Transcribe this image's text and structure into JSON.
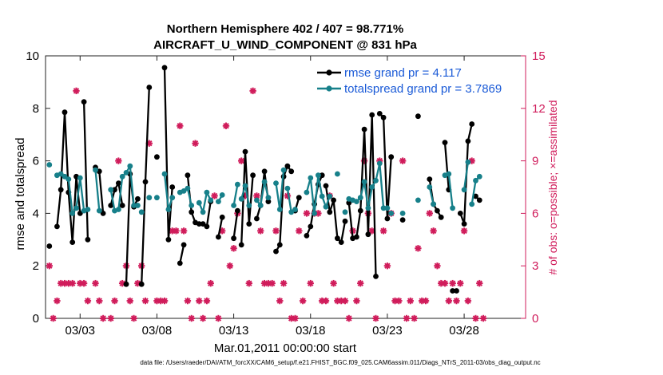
{
  "chart_data": {
    "type": "line",
    "title_line1": "Northern Hemisphere 402 / 407 = 98.771%",
    "title_line2": "AIRCRAFT_U_WIND_COMPONENT @ 831 hPa",
    "xlabel": "Mar.01,2011 00:00:00 start",
    "ylabel_left": "rmse and totalspread",
    "ylabel_right": "# of obs: o=possible; ×=assimilated",
    "footer": "data file: /Users/raeder/DAI/ATM_forcXX/CAM6_setup/f.e21.FHIST_BGC.f09_025.CAM6assim.011/Diags_NTrS_2011-03/obs_diag_output.nc",
    "xlim": [
      0.75,
      32.0
    ],
    "ylim_left": [
      0,
      10
    ],
    "ylim_right": [
      0,
      15
    ],
    "x_ticks": [
      3,
      8,
      13,
      18,
      23,
      28
    ],
    "x_tick_labels": [
      "03/03",
      "03/08",
      "03/13",
      "03/18",
      "03/23",
      "03/28"
    ],
    "y_left_ticks": [
      0,
      2,
      4,
      6,
      8,
      10
    ],
    "y_left_tick_labels": [
      "0",
      "2",
      "4",
      "6",
      "8",
      "10"
    ],
    "y_right_ticks": [
      0,
      3,
      6,
      9,
      12,
      15
    ],
    "y_right_tick_labels": [
      "0",
      "3",
      "6",
      "9",
      "12",
      "15"
    ],
    "colors": {
      "rmse": "#000000",
      "totalspread": "#17808a",
      "obs": "#d01c5b",
      "legend_text": "#1a5ad7"
    },
    "legend": {
      "rmse_label": "rmse grand pr = 4.117",
      "totalspread_label": "totalspread grand pr = 3.7869"
    },
    "series": [
      {
        "name": "rmse",
        "segments": [
          [
            [
              1.0,
              2.75
            ]
          ],
          [
            [
              1.5,
              3.5
            ],
            [
              1.75,
              4.9
            ],
            [
              2.0,
              7.85
            ],
            [
              2.25,
              4.8
            ],
            [
              2.5,
              2.9
            ],
            [
              2.75,
              5.4
            ],
            [
              3.0,
              4.0
            ]
          ],
          [
            [
              3.25,
              8.25
            ],
            [
              3.5,
              3.0
            ]
          ],
          [
            [
              4.0,
              5.75
            ],
            [
              4.25,
              5.6
            ],
            [
              4.5,
              4.0
            ]
          ],
          [
            [
              5.0,
              4.3
            ],
            [
              5.25,
              4.9
            ],
            [
              5.5,
              5.15
            ],
            [
              5.75,
              4.3
            ]
          ],
          [
            [
              6.0,
              1.3
            ],
            [
              6.25,
              5.5
            ],
            [
              6.5,
              4.25
            ],
            [
              6.75,
              4.55
            ]
          ],
          [
            [
              7.0,
              1.3
            ],
            [
              7.25,
              5.2
            ],
            [
              7.5,
              8.8
            ]
          ],
          [
            [
              8.0,
              6.15
            ]
          ],
          [
            [
              8.5,
              9.55
            ],
            [
              8.75,
              3.0
            ],
            [
              9.0,
              5.0
            ]
          ],
          [
            [
              9.5,
              2.1
            ],
            [
              9.75,
              2.8
            ]
          ],
          [
            [
              10.0,
              5.45
            ],
            [
              10.25,
              4.05
            ],
            [
              10.5,
              3.65
            ],
            [
              10.75,
              3.6
            ]
          ],
          [
            [
              11.0,
              3.6
            ],
            [
              11.25,
              3.5
            ],
            [
              11.5,
              4.45
            ]
          ],
          [
            [
              12.0,
              3.1
            ],
            [
              12.25,
              3.85
            ]
          ],
          [
            [
              13.0,
              3.05
            ],
            [
              13.25,
              4.1
            ]
          ],
          [
            [
              13.5,
              2.8
            ],
            [
              13.75,
              6.35
            ],
            [
              14.0,
              3.6
            ],
            [
              14.25,
              5.45
            ]
          ],
          [
            [
              14.5,
              3.8
            ],
            [
              14.75,
              4.3
            ],
            [
              15.0,
              5.6
            ],
            [
              15.25,
              4.45
            ]
          ],
          [
            [
              15.75,
              2.55
            ],
            [
              16.0,
              2.8
            ],
            [
              16.25,
              5.4
            ],
            [
              16.5,
              5.8
            ],
            [
              16.75,
              5.6
            ]
          ],
          [
            [
              17.0,
              4.1
            ],
            [
              17.25,
              4.6
            ]
          ],
          [
            [
              17.75,
              3.15
            ],
            [
              18.0,
              3.5
            ],
            [
              18.25,
              4.35
            ],
            [
              18.5,
              5.1
            ],
            [
              18.75,
              5.45
            ]
          ],
          [
            [
              19.0,
              5.05
            ],
            [
              19.25,
              4.05
            ],
            [
              19.5,
              4.5
            ],
            [
              19.75,
              3.05
            ],
            [
              20.0,
              2.9
            ],
            [
              20.25,
              3.7
            ]
          ],
          [
            [
              20.5,
              4.4
            ],
            [
              20.75,
              3.05
            ],
            [
              21.0,
              3.1
            ],
            [
              21.25,
              4.1
            ],
            [
              21.5,
              7.2
            ],
            [
              21.75,
              3.2
            ],
            [
              22.0,
              7.75
            ],
            [
              22.25,
              1.6
            ]
          ],
          [
            [
              22.5,
              7.8
            ],
            [
              22.75,
              7.65
            ],
            [
              23.0,
              3.8
            ],
            [
              23.25,
              6.15
            ]
          ],
          [
            [
              24.0,
              3.75
            ]
          ],
          [
            [
              25.0,
              7.7
            ]
          ],
          [
            [
              25.75,
              5.3
            ],
            [
              26.0,
              4.35
            ],
            [
              26.25,
              4.1
            ],
            [
              26.5,
              3.85
            ]
          ],
          [
            [
              26.75,
              6.7
            ],
            [
              27.0,
              4.9
            ]
          ],
          [
            [
              27.25,
              1.05
            ],
            [
              27.5,
              1.05
            ]
          ],
          [
            [
              27.75,
              4.0
            ],
            [
              28.0,
              3.6
            ],
            [
              28.25,
              6.75
            ],
            [
              28.5,
              7.4
            ]
          ],
          [
            [
              28.75,
              4.65
            ],
            [
              29.0,
              4.5
            ]
          ]
        ]
      },
      {
        "name": "totalspread",
        "segments": [
          [
            [
              1.0,
              5.85
            ]
          ],
          [
            [
              1.5,
              5.45
            ],
            [
              1.75,
              5.5
            ],
            [
              2.0,
              5.4
            ],
            [
              2.25,
              5.3
            ],
            [
              2.5,
              4.0
            ],
            [
              2.75,
              4.2
            ],
            [
              3.0,
              5.35
            ],
            [
              3.25,
              4.1
            ]
          ],
          [
            [
              3.5,
              4.15
            ]
          ],
          [
            [
              4.0,
              5.65
            ],
            [
              4.25,
              4.1
            ]
          ],
          [
            [
              5.0,
              4.9
            ],
            [
              5.25,
              4.1
            ],
            [
              5.5,
              4.15
            ],
            [
              5.75,
              5.4
            ],
            [
              6.0,
              5.55
            ],
            [
              6.25,
              5.8
            ],
            [
              6.5,
              4.3
            ],
            [
              6.75,
              4.3
            ]
          ],
          [
            [
              7.0,
              4.05
            ]
          ],
          [
            [
              7.5,
              4.6
            ]
          ],
          [
            [
              8.0,
              4.6
            ]
          ],
          [
            [
              8.5,
              5.5
            ],
            [
              8.75,
              4.15
            ],
            [
              9.0,
              4.6
            ]
          ],
          [
            [
              9.5,
              4.8
            ],
            [
              9.75,
              4.85
            ]
          ],
          [
            [
              10.0,
              4.95
            ],
            [
              10.25,
              4.3
            ]
          ],
          [
            [
              10.75,
              4.4
            ],
            [
              11.0,
              4.05
            ],
            [
              11.25,
              4.8
            ],
            [
              11.5,
              4.5
            ]
          ],
          [
            [
              12.0,
              4.45
            ],
            [
              12.25,
              4.7
            ]
          ],
          [
            [
              13.0,
              4.3
            ],
            [
              13.25,
              5.1
            ]
          ],
          [
            [
              13.5,
              4.55
            ],
            [
              13.75,
              5.05
            ],
            [
              14.0,
              4.3
            ]
          ],
          [
            [
              14.5,
              4.5
            ],
            [
              14.75,
              4.3
            ],
            [
              15.0,
              5.2
            ],
            [
              15.25,
              4.6
            ]
          ],
          [
            [
              15.75,
              5.15
            ],
            [
              16.0,
              4.15
            ],
            [
              16.25,
              5.65
            ]
          ],
          [
            [
              16.5,
              4.95
            ],
            [
              16.75,
              4.05
            ],
            [
              17.0,
              4.15
            ]
          ],
          [
            [
              17.75,
              4.8
            ],
            [
              18.0,
              5.35
            ],
            [
              18.25,
              4.0
            ],
            [
              18.5,
              5.45
            ],
            [
              18.75,
              4.65
            ],
            [
              19.0,
              4.25
            ],
            [
              19.25,
              4.65
            ]
          ],
          [
            [
              19.75,
              5.5
            ]
          ],
          [
            [
              20.25,
              4.05
            ]
          ],
          [
            [
              20.5,
              4.55
            ],
            [
              20.75,
              4.5
            ],
            [
              21.0,
              4.45
            ],
            [
              21.25,
              4.6
            ],
            [
              21.5,
              5.2
            ],
            [
              21.75,
              4.2
            ],
            [
              22.0,
              5.0
            ],
            [
              22.25,
              5.25
            ],
            [
              22.5,
              5.9
            ],
            [
              22.75,
              4.2
            ],
            [
              23.0,
              4.2
            ]
          ],
          [
            [
              23.25,
              4.0
            ]
          ],
          [
            [
              24.0,
              4.0
            ]
          ],
          [
            [
              25.0,
              4.5
            ]
          ],
          [
            [
              25.75,
              5.0
            ],
            [
              26.0,
              4.35
            ]
          ],
          [
            [
              26.75,
              5.45
            ],
            [
              27.0,
              5.5
            ],
            [
              27.25,
              4.2
            ]
          ],
          [
            [
              28.0,
              4.9
            ],
            [
              28.25,
              5.95
            ]
          ],
          [
            [
              28.5,
              4.35
            ],
            [
              28.75,
              5.25
            ],
            [
              29.0,
              5.4
            ]
          ]
        ]
      }
    ],
    "obs_possible": [
      [
        1.0,
        3
      ],
      [
        1.25,
        0
      ],
      [
        1.5,
        1
      ],
      [
        1.75,
        2
      ],
      [
        2.0,
        2
      ],
      [
        2.25,
        2
      ],
      [
        2.5,
        2
      ],
      [
        2.75,
        13
      ],
      [
        3.0,
        2
      ],
      [
        3.25,
        2
      ],
      [
        3.5,
        1
      ],
      [
        4.0,
        2
      ],
      [
        4.25,
        1
      ],
      [
        4.5,
        0
      ],
      [
        5.0,
        0
      ],
      [
        5.25,
        1
      ],
      [
        5.5,
        9
      ],
      [
        5.75,
        2
      ],
      [
        6.0,
        3
      ],
      [
        6.25,
        1
      ],
      [
        6.5,
        0
      ],
      [
        6.75,
        2
      ],
      [
        7.0,
        3
      ],
      [
        7.25,
        1
      ],
      [
        7.5,
        10
      ],
      [
        8.0,
        1
      ],
      [
        8.25,
        1
      ],
      [
        8.5,
        1
      ],
      [
        9.0,
        5
      ],
      [
        9.25,
        5
      ],
      [
        9.5,
        11
      ],
      [
        9.75,
        5
      ],
      [
        10.0,
        1
      ],
      [
        10.25,
        0
      ],
      [
        10.5,
        10
      ],
      [
        10.75,
        1
      ],
      [
        11.0,
        0
      ],
      [
        11.25,
        1
      ],
      [
        11.5,
        2
      ],
      [
        11.75,
        7
      ],
      [
        12.0,
        0
      ],
      [
        12.25,
        5
      ],
      [
        12.5,
        11
      ],
      [
        12.75,
        3
      ],
      [
        13.0,
        4
      ],
      [
        13.25,
        6
      ],
      [
        13.5,
        9
      ],
      [
        13.75,
        7
      ],
      [
        14.0,
        2
      ],
      [
        14.25,
        13
      ],
      [
        14.5,
        7
      ],
      [
        14.75,
        5
      ],
      [
        15.0,
        2
      ],
      [
        15.25,
        2
      ],
      [
        15.5,
        2
      ],
      [
        15.75,
        5
      ],
      [
        16.0,
        1
      ],
      [
        16.25,
        2
      ],
      [
        16.5,
        7
      ],
      [
        16.75,
        0
      ],
      [
        17.0,
        0
      ],
      [
        17.25,
        5
      ],
      [
        17.5,
        1
      ],
      [
        17.75,
        6
      ],
      [
        18.0,
        2
      ],
      [
        18.25,
        6
      ],
      [
        18.5,
        6
      ],
      [
        18.75,
        1
      ],
      [
        19.0,
        1
      ],
      [
        19.25,
        7
      ],
      [
        19.5,
        2
      ],
      [
        19.75,
        1
      ],
      [
        20.0,
        1
      ],
      [
        20.25,
        1
      ],
      [
        20.5,
        0
      ],
      [
        20.75,
        5
      ],
      [
        21.0,
        1
      ],
      [
        21.25,
        2
      ],
      [
        21.5,
        9
      ],
      [
        21.75,
        6
      ],
      [
        22.0,
        5
      ],
      [
        22.25,
        0
      ],
      [
        22.5,
        9
      ],
      [
        22.75,
        5
      ],
      [
        23.0,
        3
      ],
      [
        23.25,
        6
      ],
      [
        23.5,
        1
      ],
      [
        23.75,
        1
      ],
      [
        24.0,
        9
      ],
      [
        24.25,
        0
      ],
      [
        24.5,
        1
      ],
      [
        24.75,
        0
      ],
      [
        25.0,
        4
      ],
      [
        25.25,
        1
      ],
      [
        25.5,
        1
      ],
      [
        25.75,
        6
      ],
      [
        26.0,
        5
      ],
      [
        26.25,
        3
      ],
      [
        26.5,
        2
      ],
      [
        26.75,
        2
      ],
      [
        27.0,
        1
      ],
      [
        27.25,
        2
      ],
      [
        27.5,
        1
      ],
      [
        27.75,
        2
      ],
      [
        28.0,
        5
      ],
      [
        28.25,
        1
      ],
      [
        28.5,
        9
      ],
      [
        28.75,
        0
      ],
      [
        29.0,
        2
      ],
      [
        29.25,
        0
      ]
    ]
  }
}
